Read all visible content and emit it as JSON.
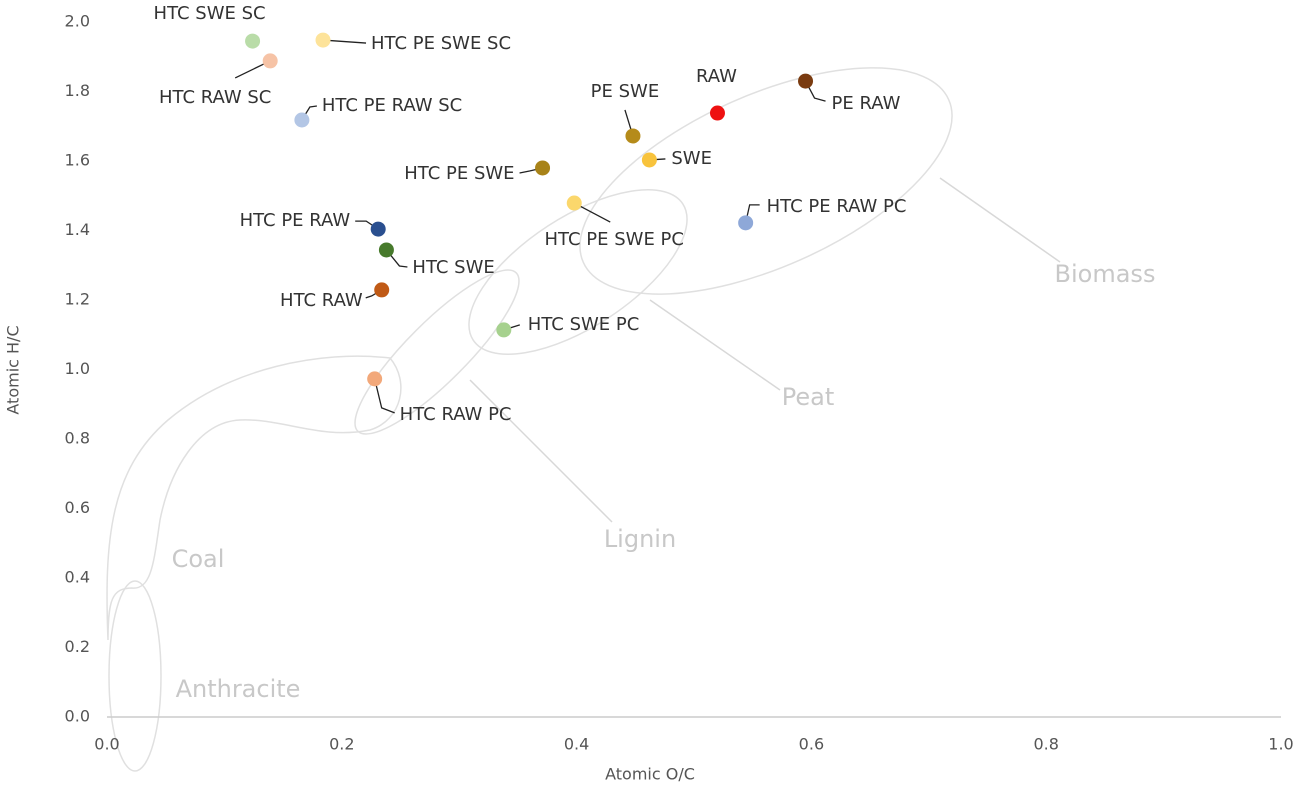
{
  "chart_data": {
    "type": "scatter",
    "x_label": "Atomic O/C",
    "y_label": "Atomic H/C",
    "xlim": [
      0,
      1
    ],
    "ylim": [
      0,
      2
    ],
    "xticks": [
      {
        "value": 0,
        "label": "0.0"
      },
      0.2,
      0.4,
      0.6,
      0.8,
      {
        "value": 1,
        "label": "1.0"
      }
    ],
    "yticks": [
      {
        "value": 0,
        "label": "0.0"
      },
      0.2,
      0.4,
      0.6,
      0.8,
      {
        "value": 1,
        "label": "1.0"
      },
      1.2,
      1.4,
      1.6,
      1.8,
      {
        "value": 2,
        "label": "2.0"
      }
    ],
    "annotations": [
      "Biomass",
      "Peat",
      "Lignin",
      "Coal",
      "Anthracite"
    ],
    "series": [
      {
        "name": "HTC SWE SC",
        "color": "#b9dca8",
        "x": [
          0.124
        ],
        "values": [
          1.945
        ]
      },
      {
        "name": "HTC RAW SC",
        "color": "#f6c3a6",
        "x": [
          0.139
        ],
        "values": [
          1.888
        ]
      },
      {
        "name": "HTC PE SWE SC",
        "color": "#fde39a",
        "x": [
          0.184
        ],
        "values": [
          1.948
        ]
      },
      {
        "name": "HTC PE RAW SC",
        "color": "#b3c6e5",
        "x": [
          0.166
        ],
        "values": [
          1.718
        ]
      },
      {
        "name": "PE SWE",
        "color": "#b58b1a",
        "x": [
          0.448
        ],
        "values": [
          1.672
        ]
      },
      {
        "name": "RAW",
        "color": "#ee1111",
        "x": [
          0.52
        ],
        "values": [
          1.738
        ]
      },
      {
        "name": "PE RAW",
        "color": "#7a3b10",
        "x": [
          0.595
        ],
        "values": [
          1.83
        ]
      },
      {
        "name": "SWE",
        "color": "#f8c33c",
        "x": [
          0.462
        ],
        "values": [
          1.603
        ]
      },
      {
        "name": "HTC PE SWE",
        "color": "#a88318",
        "x": [
          0.371
        ],
        "values": [
          1.58
        ]
      },
      {
        "name": "HTC PE SWE PC",
        "color": "#fbd76c",
        "x": [
          0.398
        ],
        "values": [
          1.479
        ]
      },
      {
        "name": "HTC PE RAW PC",
        "color": "#8ea8d8",
        "x": [
          0.544
        ],
        "values": [
          1.422
        ]
      },
      {
        "name": "HTC PE RAW",
        "color": "#2a4f8f",
        "x": [
          0.231
        ],
        "values": [
          1.404
        ]
      },
      {
        "name": "HTC SWE",
        "color": "#477a2c",
        "x": [
          0.238
        ],
        "values": [
          1.344
        ]
      },
      {
        "name": "HTC RAW",
        "color": "#c05a16",
        "x": [
          0.234
        ],
        "values": [
          1.229
        ]
      },
      {
        "name": "HTC SWE PC",
        "color": "#a6d18e",
        "x": [
          0.338
        ],
        "values": [
          1.114
        ]
      },
      {
        "name": "HTC RAW PC",
        "color": "#f2a87a",
        "x": [
          0.228
        ],
        "values": [
          0.973
        ]
      }
    ]
  }
}
